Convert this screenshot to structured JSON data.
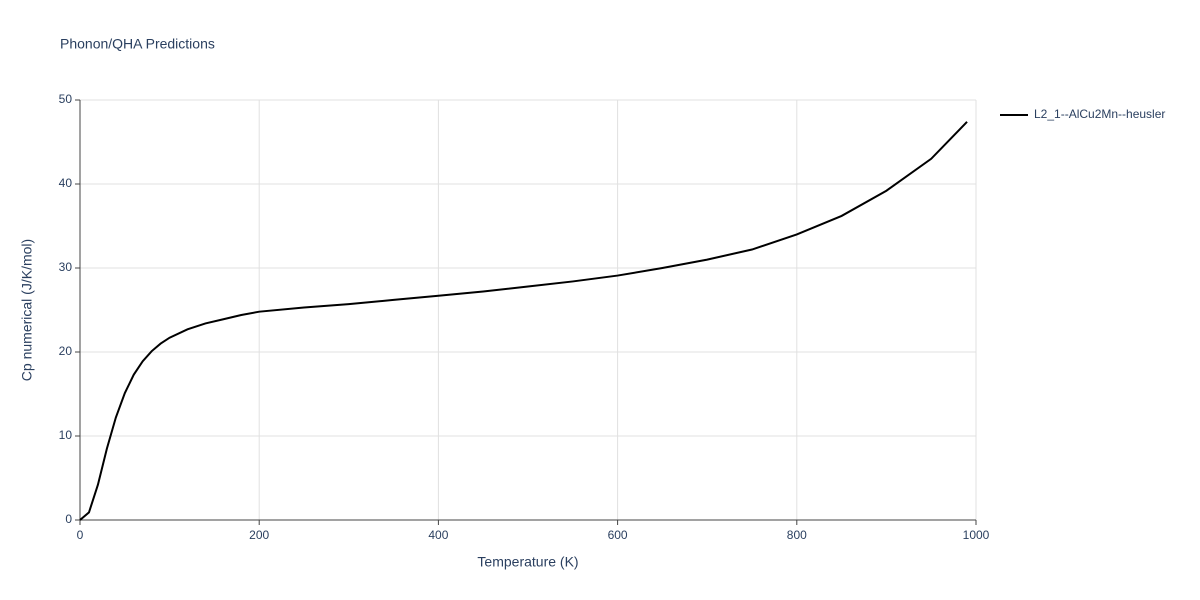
{
  "chart_data": {
    "type": "line",
    "title": "Phonon/QHA Predictions",
    "x_label": "Temperature (K)",
    "y_label": "Cp numerical (J/K/mol)",
    "x": [
      0,
      10,
      20,
      30,
      40,
      50,
      60,
      70,
      80,
      90,
      100,
      120,
      140,
      160,
      180,
      200,
      250,
      300,
      350,
      400,
      450,
      500,
      550,
      600,
      650,
      700,
      750,
      800,
      850,
      900,
      950,
      990
    ],
    "series": [
      {
        "name": "L2_1--AlCu2Mn--heusler",
        "color": "#000000",
        "values": [
          0,
          0.9,
          4.2,
          8.5,
          12.2,
          15.1,
          17.3,
          18.9,
          20.1,
          21.0,
          21.7,
          22.7,
          23.4,
          23.9,
          24.4,
          24.8,
          25.3,
          25.7,
          26.2,
          26.7,
          27.2,
          27.8,
          28.4,
          29.1,
          30.0,
          31.0,
          32.2,
          34.0,
          36.2,
          39.2,
          43.0,
          47.4
        ]
      }
    ],
    "xlim": [
      0,
      1000
    ],
    "xticks": [
      0,
      200,
      400,
      600,
      800,
      1000
    ],
    "ylim": [
      0,
      50
    ],
    "yticks": [
      0,
      10,
      20,
      30,
      40,
      50
    ],
    "grid": true,
    "legend": "right"
  }
}
